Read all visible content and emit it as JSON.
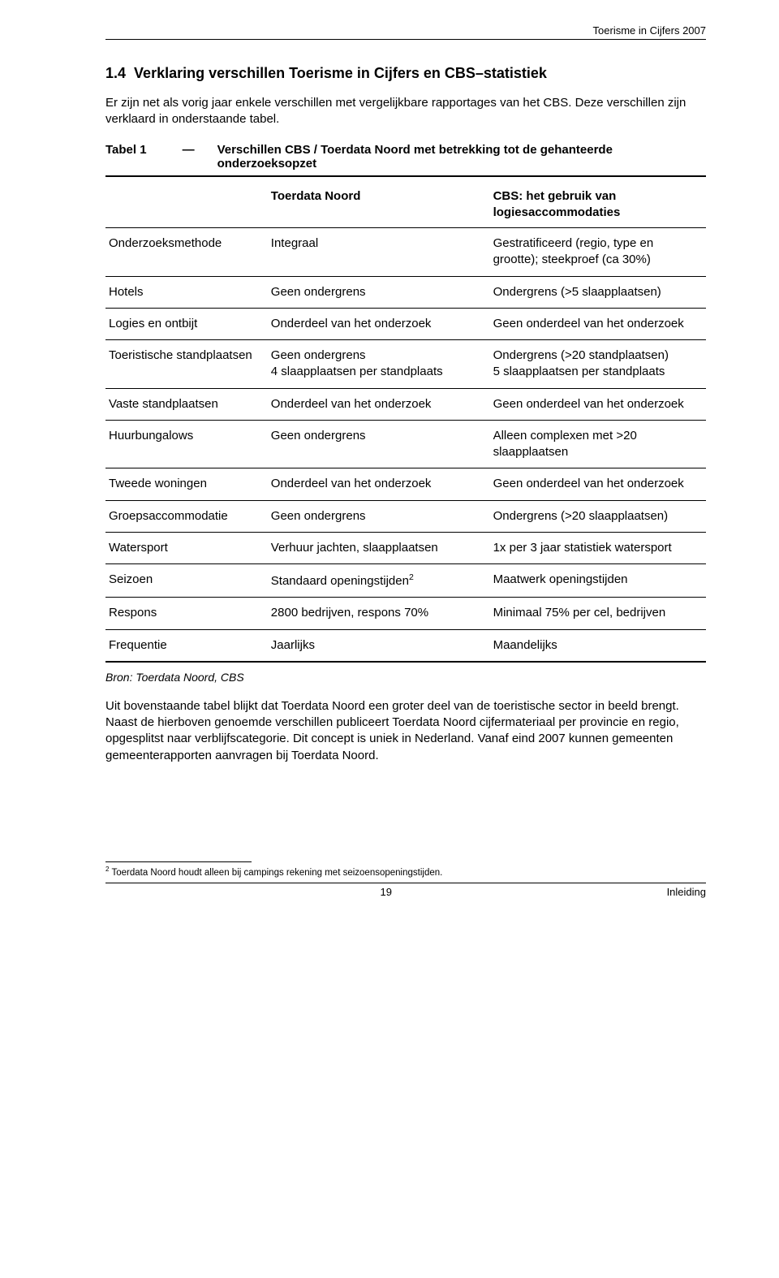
{
  "header": {
    "doc_title": "Toerisme in Cijfers 2007"
  },
  "section": {
    "number": "1.4",
    "title": "Verklaring verschillen Toerisme in Cijfers en CBS–statistiek",
    "intro": "Er zijn net als vorig jaar enkele verschillen met vergelijkbare rapportages van het CBS. Deze verschillen zijn verklaard in onderstaande tabel."
  },
  "table": {
    "caption_label": "Tabel 1",
    "caption_dash": "—",
    "caption_desc": "Verschillen CBS / Toerdata Noord met betrekking tot de gehanteerde onderzoeksopzet",
    "head_col2": "Toerdata Noord",
    "head_col3": "CBS: het gebruik van logiesaccommodaties",
    "rows": [
      {
        "c1": "Onderzoeksmethode",
        "c2": "Integraal",
        "c3": "Gestratificeerd (regio, type en grootte); steekproef (ca 30%)"
      },
      {
        "c1": "Hotels",
        "c2": "Geen ondergrens",
        "c3": "Ondergrens (>5 slaapplaatsen)"
      },
      {
        "c1": "Logies en ontbijt",
        "c2": "Onderdeel van het onderzoek",
        "c3": "Geen onderdeel van het onderzoek"
      },
      {
        "c1": "Toeristische standplaatsen",
        "c2": "Geen ondergrens\n4 slaapplaatsen per standplaats",
        "c3": "Ondergrens (>20 standplaatsen)\n5 slaapplaatsen per standplaats"
      },
      {
        "c1": "Vaste standplaatsen",
        "c2": "Onderdeel van het onderzoek",
        "c3": "Geen onderdeel van het onderzoek"
      },
      {
        "c1": "Huurbungalows",
        "c2": "Geen ondergrens",
        "c3": "Alleen complexen met >20 slaapplaatsen"
      },
      {
        "c1": "Tweede woningen",
        "c2": "Onderdeel van het onderzoek",
        "c3": "Geen onderdeel van het onderzoek"
      },
      {
        "c1": "Groepsaccommodatie",
        "c2": "Geen ondergrens",
        "c3": "Ondergrens (>20 slaapplaatsen)"
      },
      {
        "c1": "Watersport",
        "c2": "Verhuur jachten, slaapplaatsen",
        "c3": "1x per 3 jaar statistiek watersport"
      },
      {
        "c1": "Seizoen",
        "c2": "Standaard openingstijden",
        "c2_sup": "2",
        "c3": "Maatwerk openingstijden"
      },
      {
        "c1": "Respons",
        "c2": "2800 bedrijven, respons 70%",
        "c3": "Minimaal 75% per cel, bedrijven"
      },
      {
        "c1": "Frequentie",
        "c2": "Jaarlijks",
        "c3": "Maandelijks"
      }
    ],
    "source": "Bron: Toerdata Noord, CBS"
  },
  "after_text": "Uit bovenstaande tabel blijkt dat Toerdata Noord een groter deel van de toeristische sector in beeld brengt. Naast de hierboven genoemde verschillen publiceert Toerdata Noord cijfermateriaal per provincie en regio, opgesplitst naar verblijfscategorie. Dit concept is uniek in Nederland. Vanaf eind 2007 kunnen gemeenten gemeenterapporten aanvragen bij Toerdata Noord.",
  "footnote": {
    "marker": "2",
    "text": " Toerdata Noord houdt alleen bij campings rekening met seizoensopeningstijden."
  },
  "footer": {
    "page": "19",
    "section": "Inleiding"
  }
}
